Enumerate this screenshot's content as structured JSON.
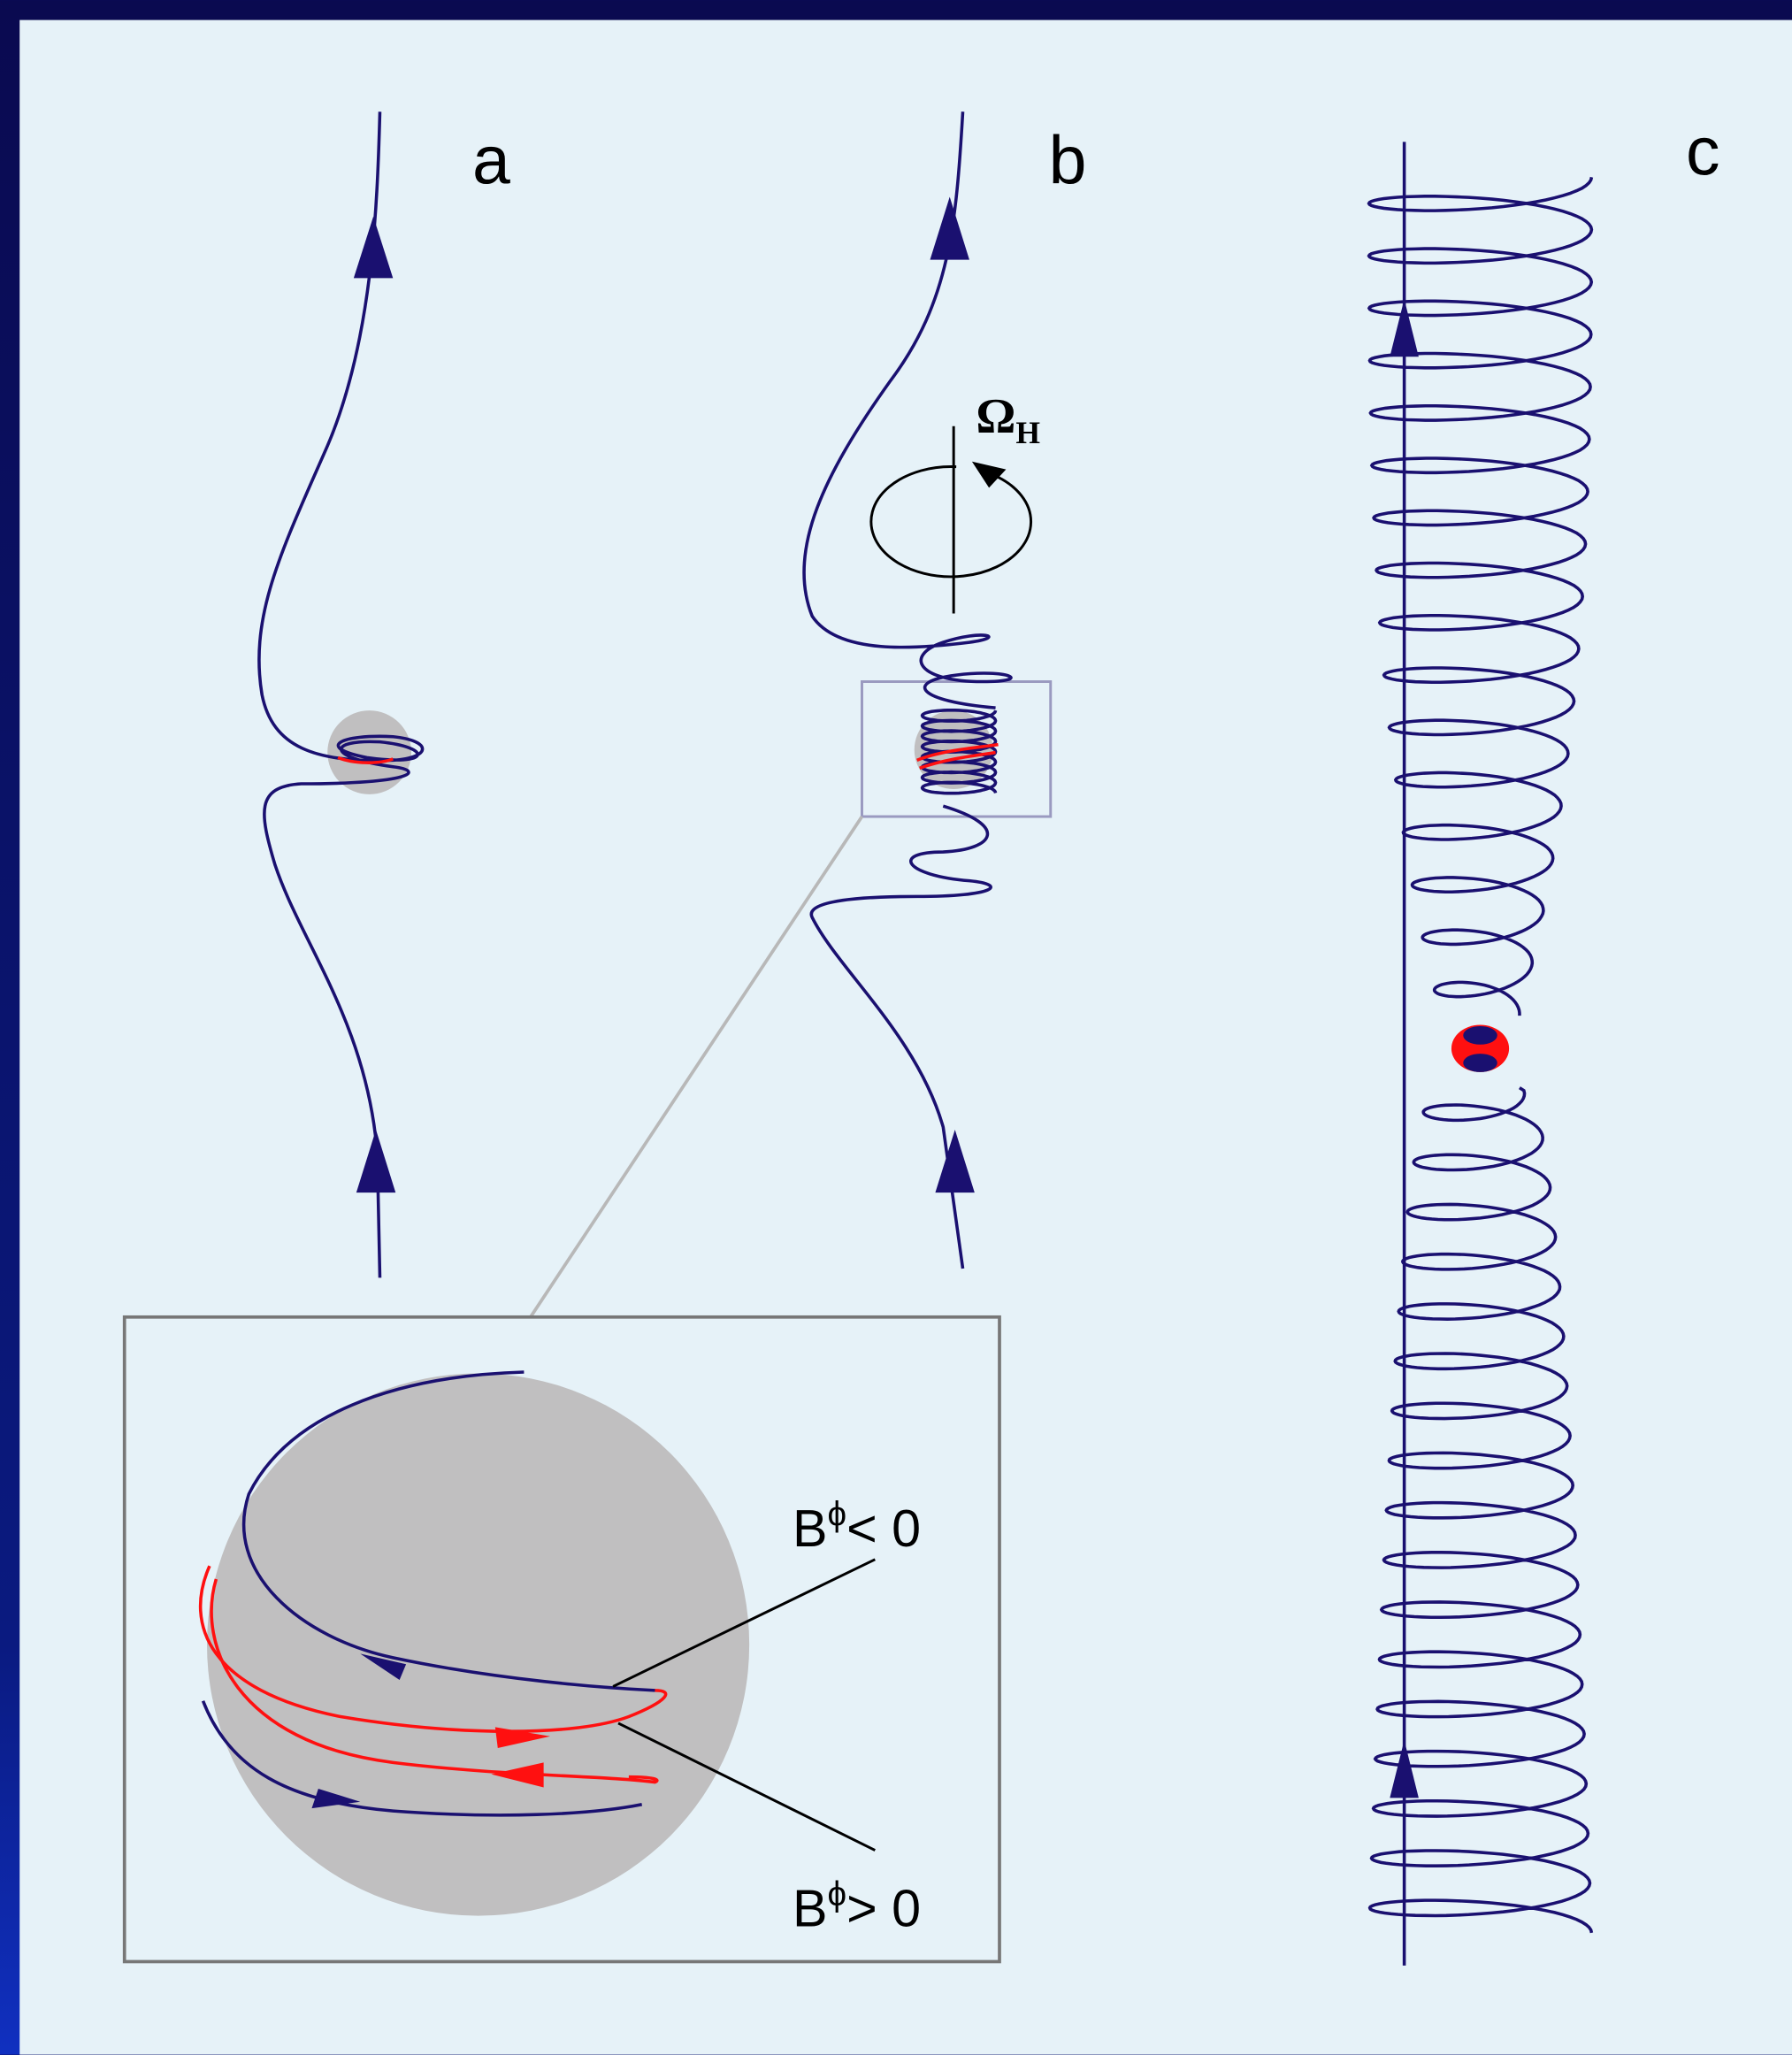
{
  "panels": {
    "a": {
      "label": "a"
    },
    "b": {
      "label": "b"
    },
    "c": {
      "label": "c"
    }
  },
  "rotation": {
    "symbol": "Ω",
    "subscript": "H"
  },
  "inset": {
    "upper_label": {
      "base": "B",
      "superscript": "ϕ",
      "text": "< 0"
    },
    "lower_label": {
      "base": "B",
      "superscript": "ϕ",
      "text": "> 0"
    }
  }
}
